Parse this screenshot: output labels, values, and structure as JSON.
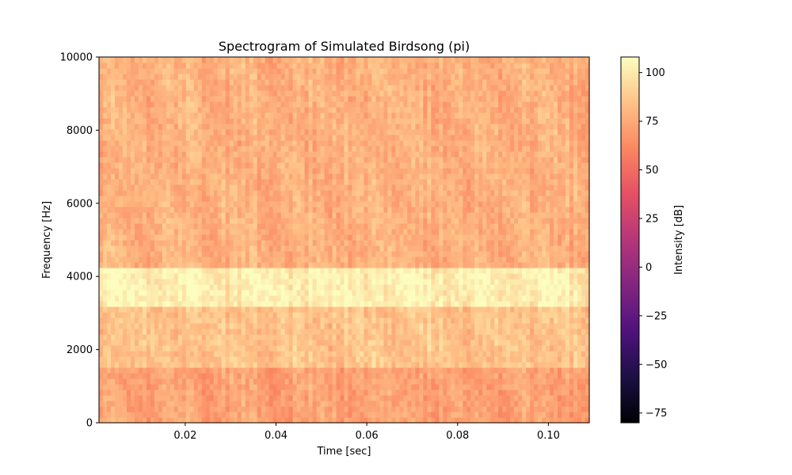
{
  "chart_data": {
    "type": "heatmap",
    "title": "Spectrogram of Simulated Birdsong (pi)",
    "xlabel": "Time [sec]",
    "ylabel": "Frequency [Hz]",
    "xlim": [
      0.001,
      0.109
    ],
    "ylim": [
      0,
      10000
    ],
    "xticks": [
      0.02,
      0.04,
      0.06,
      0.08,
      0.1
    ],
    "xtick_labels": [
      "0.02",
      "0.04",
      "0.06",
      "0.08",
      "0.10"
    ],
    "yticks": [
      0,
      2000,
      4000,
      6000,
      8000,
      10000
    ],
    "ytick_labels": [
      "0",
      "2000",
      "4000",
      "6000",
      "8000",
      "10000"
    ],
    "colormap": "magma",
    "colorbar": {
      "label": "Intensity [dB]",
      "range": [
        -80,
        108
      ],
      "ticks": [
        -75,
        -50,
        -25,
        0,
        25,
        50,
        75,
        100
      ],
      "tick_labels": [
        "−75",
        "−50",
        "−25",
        "0",
        "25",
        "50",
        "75",
        "100"
      ]
    },
    "intensity": {
      "description_bands": [
        {
          "frequency_range_hz": [
            0,
            1500
          ],
          "typical_db": 72
        },
        {
          "frequency_range_hz": [
            1500,
            3200
          ],
          "typical_db": 85
        },
        {
          "frequency_range_hz": [
            3200,
            4200
          ],
          "typical_db": 103
        },
        {
          "frequency_range_hz": [
            4200,
            10000
          ],
          "typical_db": 78
        }
      ],
      "min_db": 60,
      "max_db": 108
    },
    "grid": false,
    "legend": "none"
  }
}
